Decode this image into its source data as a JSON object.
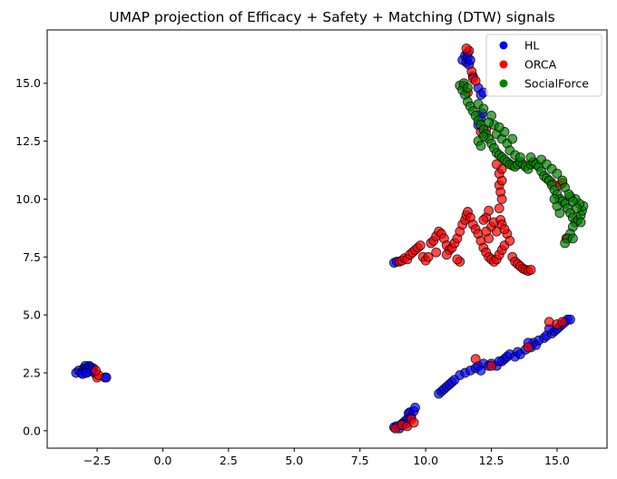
{
  "chart_data": {
    "type": "scatter",
    "title": "UMAP projection of Efficacy + Safety + Matching (DTW) signals",
    "xlabel": "",
    "ylabel": "",
    "xlim": [
      -4.4,
      16.9
    ],
    "ylim": [
      -0.75,
      17.3
    ],
    "xticks": [
      {
        "value": -2.5,
        "label": "−2.5"
      },
      {
        "value": 0.0,
        "label": "0.0"
      },
      {
        "value": 2.5,
        "label": "2.5"
      },
      {
        "value": 5.0,
        "label": "5.0"
      },
      {
        "value": 7.5,
        "label": "7.5"
      },
      {
        "value": 10.0,
        "label": "10.0"
      },
      {
        "value": 12.5,
        "label": "12.5"
      },
      {
        "value": 15.0,
        "label": "15.0"
      }
    ],
    "yticks": [
      {
        "value": 0.0,
        "label": "0.0"
      },
      {
        "value": 2.5,
        "label": "2.5"
      },
      {
        "value": 5.0,
        "label": "5.0"
      },
      {
        "value": 7.5,
        "label": "7.5"
      },
      {
        "value": 10.0,
        "label": "10.0"
      },
      {
        "value": 12.5,
        "label": "12.5"
      },
      {
        "value": 15.0,
        "label": "15.0"
      }
    ],
    "grid": false,
    "legend": {
      "placement": "top-right"
    },
    "series": [
      {
        "name": "HL",
        "color": "#0000ff",
        "points": [
          [
            -3.3,
            2.5
          ],
          [
            -3.2,
            2.6
          ],
          [
            -3.1,
            2.5
          ],
          [
            -3.0,
            2.7
          ],
          [
            -2.95,
            2.8
          ],
          [
            -2.9,
            2.7
          ],
          [
            -2.85,
            2.55
          ],
          [
            -2.8,
            2.8
          ],
          [
            -2.75,
            2.75
          ],
          [
            -2.7,
            2.6
          ],
          [
            -2.65,
            2.7
          ],
          [
            -2.6,
            2.5
          ],
          [
            -2.2,
            2.3
          ],
          [
            -2.15,
            2.3
          ],
          [
            -3.05,
            2.45
          ],
          [
            -2.9,
            2.5
          ],
          [
            8.8,
            0.15
          ],
          [
            8.9,
            0.2
          ],
          [
            9.0,
            0.1
          ],
          [
            9.1,
            0.3
          ],
          [
            9.2,
            0.4
          ],
          [
            9.3,
            0.5
          ],
          [
            9.35,
            0.75
          ],
          [
            9.4,
            0.8
          ],
          [
            9.45,
            0.6
          ],
          [
            9.55,
            0.85
          ],
          [
            9.6,
            1.0
          ],
          [
            9.25,
            0.3
          ],
          [
            10.5,
            1.6
          ],
          [
            10.6,
            1.7
          ],
          [
            10.7,
            1.8
          ],
          [
            10.8,
            1.9
          ],
          [
            10.9,
            2.0
          ],
          [
            11.0,
            2.1
          ],
          [
            11.1,
            2.2
          ],
          [
            11.3,
            2.4
          ],
          [
            11.5,
            2.5
          ],
          [
            11.7,
            2.6
          ],
          [
            11.9,
            2.7
          ],
          [
            12.0,
            2.8
          ],
          [
            12.2,
            2.9
          ],
          [
            12.4,
            2.8
          ],
          [
            12.5,
            2.9
          ],
          [
            12.7,
            2.8
          ],
          [
            12.9,
            3.0
          ],
          [
            13.0,
            3.1
          ],
          [
            13.1,
            3.2
          ],
          [
            13.2,
            3.3
          ],
          [
            13.4,
            3.2
          ],
          [
            13.5,
            3.4
          ],
          [
            13.6,
            3.3
          ],
          [
            13.8,
            3.5
          ],
          [
            14.0,
            3.6
          ],
          [
            14.1,
            3.8
          ],
          [
            14.2,
            3.7
          ],
          [
            14.3,
            3.9
          ],
          [
            14.5,
            4.0
          ],
          [
            14.6,
            4.1
          ],
          [
            14.8,
            4.2
          ],
          [
            14.9,
            4.3
          ],
          [
            15.0,
            4.4
          ],
          [
            15.1,
            4.5
          ],
          [
            15.2,
            4.6
          ],
          [
            15.3,
            4.7
          ],
          [
            15.4,
            4.8
          ],
          [
            15.5,
            4.8
          ],
          [
            14.7,
            4.4
          ],
          [
            13.9,
            3.8
          ],
          [
            12.8,
            3.0
          ],
          [
            12.1,
            2.6
          ],
          [
            8.8,
            7.25
          ],
          [
            8.9,
            7.3
          ],
          [
            11.4,
            16.0
          ],
          [
            11.5,
            16.2
          ],
          [
            11.55,
            15.9
          ],
          [
            11.6,
            16.3
          ],
          [
            11.6,
            16.1
          ],
          [
            11.65,
            15.8
          ],
          [
            11.7,
            16.0
          ],
          [
            11.8,
            15.3
          ],
          [
            12.0,
            14.8
          ],
          [
            12.1,
            14.5
          ],
          [
            12.2,
            14.6
          ],
          [
            12.0,
            13.2
          ],
          [
            12.1,
            13.5
          ],
          [
            12.15,
            13.7
          ]
        ]
      },
      {
        "name": "ORCA",
        "color": "#ff0000",
        "points": [
          [
            -2.5,
            2.3
          ],
          [
            -2.45,
            2.4
          ],
          [
            -2.55,
            2.6
          ],
          [
            8.85,
            0.1
          ],
          [
            9.1,
            0.25
          ],
          [
            9.3,
            0.2
          ],
          [
            9.45,
            0.5
          ],
          [
            9.55,
            0.35
          ],
          [
            11.9,
            3.1
          ],
          [
            12.5,
            2.8
          ],
          [
            13.9,
            3.6
          ],
          [
            14.7,
            4.7
          ],
          [
            15.0,
            4.6
          ],
          [
            15.2,
            4.7
          ],
          [
            9.0,
            7.3
          ],
          [
            9.1,
            7.35
          ],
          [
            9.2,
            7.45
          ],
          [
            9.3,
            7.4
          ],
          [
            9.4,
            7.6
          ],
          [
            9.5,
            7.7
          ],
          [
            9.6,
            7.8
          ],
          [
            9.7,
            7.9
          ],
          [
            9.8,
            8.0
          ],
          [
            9.9,
            7.5
          ],
          [
            10.0,
            7.35
          ],
          [
            10.1,
            7.5
          ],
          [
            10.2,
            8.1
          ],
          [
            10.3,
            8.2
          ],
          [
            10.4,
            8.4
          ],
          [
            10.5,
            8.6
          ],
          [
            10.6,
            8.5
          ],
          [
            10.7,
            8.3
          ],
          [
            10.8,
            8.0
          ],
          [
            10.9,
            7.8
          ],
          [
            11.0,
            7.9
          ],
          [
            11.1,
            8.1
          ],
          [
            11.2,
            8.3
          ],
          [
            11.3,
            8.6
          ],
          [
            11.4,
            8.9
          ],
          [
            11.5,
            9.1
          ],
          [
            11.55,
            9.3
          ],
          [
            11.6,
            9.45
          ],
          [
            11.7,
            9.2
          ],
          [
            11.8,
            8.9
          ],
          [
            11.9,
            8.7
          ],
          [
            12.0,
            8.5
          ],
          [
            12.1,
            8.2
          ],
          [
            12.2,
            7.9
          ],
          [
            12.3,
            7.7
          ],
          [
            12.4,
            7.5
          ],
          [
            12.5,
            7.4
          ],
          [
            12.6,
            7.3
          ],
          [
            12.7,
            7.4
          ],
          [
            12.8,
            7.6
          ],
          [
            12.9,
            7.8
          ],
          [
            13.0,
            8.0
          ],
          [
            13.1,
            8.5
          ],
          [
            13.2,
            8.2
          ],
          [
            13.3,
            7.5
          ],
          [
            13.4,
            7.3
          ],
          [
            13.5,
            7.2
          ],
          [
            13.6,
            7.1
          ],
          [
            13.7,
            7.0
          ],
          [
            13.8,
            6.95
          ],
          [
            13.9,
            6.9
          ],
          [
            14.0,
            6.95
          ],
          [
            12.5,
            8.8
          ],
          [
            12.6,
            9.0
          ],
          [
            12.7,
            8.6
          ],
          [
            12.85,
            9.1
          ],
          [
            12.9,
            8.9
          ],
          [
            13.0,
            8.7
          ],
          [
            12.4,
            8.3
          ],
          [
            12.3,
            8.6
          ],
          [
            11.3,
            7.3
          ],
          [
            11.2,
            7.4
          ],
          [
            10.8,
            7.6
          ],
          [
            10.4,
            7.7
          ],
          [
            12.3,
            9.2
          ],
          [
            12.4,
            9.5
          ],
          [
            12.2,
            9.1
          ],
          [
            12.8,
            10.6
          ],
          [
            12.85,
            10.3
          ],
          [
            12.9,
            10.0
          ],
          [
            12.8,
            9.6
          ],
          [
            12.9,
            10.8
          ],
          [
            12.8,
            11.1
          ],
          [
            12.9,
            11.3
          ],
          [
            12.7,
            11.5
          ],
          [
            11.75,
            15.5
          ],
          [
            11.8,
            15.2
          ],
          [
            11.9,
            15.1
          ],
          [
            11.65,
            16.4
          ],
          [
            11.55,
            16.5
          ],
          [
            11.45,
            14.9
          ],
          [
            11.6,
            14.6
          ],
          [
            12.3,
            13.0
          ],
          [
            12.1,
            12.9
          ],
          [
            15.1,
            10.6
          ],
          [
            15.2,
            10.7
          ],
          [
            14.8,
            10.7
          ],
          [
            15.35,
            8.3
          ]
        ]
      },
      {
        "name": "SocialForce",
        "color": "#008000",
        "points": [
          [
            11.3,
            14.9
          ],
          [
            11.4,
            14.7
          ],
          [
            11.5,
            14.5
          ],
          [
            11.6,
            14.2
          ],
          [
            11.7,
            14.0
          ],
          [
            11.8,
            13.8
          ],
          [
            11.9,
            13.6
          ],
          [
            12.0,
            13.4
          ],
          [
            12.1,
            13.2
          ],
          [
            12.2,
            13.0
          ],
          [
            12.3,
            12.8
          ],
          [
            12.4,
            12.6
          ],
          [
            12.5,
            12.4
          ],
          [
            12.6,
            12.2
          ],
          [
            12.7,
            12.0
          ],
          [
            12.8,
            11.9
          ],
          [
            12.9,
            11.8
          ],
          [
            13.0,
            11.7
          ],
          [
            13.1,
            11.6
          ],
          [
            13.2,
            11.5
          ],
          [
            13.3,
            11.45
          ],
          [
            13.4,
            11.4
          ],
          [
            13.5,
            11.5
          ],
          [
            13.6,
            11.6
          ],
          [
            13.7,
            11.5
          ],
          [
            13.8,
            11.4
          ],
          [
            13.9,
            11.3
          ],
          [
            14.0,
            11.5
          ],
          [
            14.1,
            11.6
          ],
          [
            14.2,
            11.5
          ],
          [
            14.3,
            11.4
          ],
          [
            14.4,
            11.2
          ],
          [
            14.5,
            11.0
          ],
          [
            14.6,
            10.9
          ],
          [
            14.7,
            10.8
          ],
          [
            14.8,
            10.6
          ],
          [
            14.9,
            10.4
          ],
          [
            15.0,
            10.2
          ],
          [
            15.1,
            10.0
          ],
          [
            15.2,
            9.9
          ],
          [
            15.3,
            9.8
          ],
          [
            15.4,
            9.6
          ],
          [
            15.5,
            9.4
          ],
          [
            15.6,
            9.2
          ],
          [
            15.7,
            9.0
          ],
          [
            15.8,
            9.1
          ],
          [
            15.9,
            9.3
          ],
          [
            15.95,
            9.5
          ],
          [
            16.0,
            9.7
          ],
          [
            15.85,
            9.8
          ],
          [
            15.7,
            10.0
          ],
          [
            15.5,
            10.1
          ],
          [
            15.6,
            8.8
          ],
          [
            15.5,
            8.5
          ],
          [
            15.4,
            8.3
          ],
          [
            15.3,
            8.1
          ],
          [
            15.6,
            8.3
          ],
          [
            11.45,
            15.0
          ],
          [
            11.6,
            14.8
          ],
          [
            12.0,
            14.1
          ],
          [
            12.2,
            13.9
          ],
          [
            12.5,
            13.6
          ],
          [
            12.6,
            13.2
          ],
          [
            12.4,
            13.3
          ],
          [
            12.7,
            12.8
          ],
          [
            12.9,
            12.6
          ],
          [
            13.1,
            12.4
          ],
          [
            13.3,
            12.6
          ],
          [
            13.0,
            12.9
          ],
          [
            12.8,
            13.1
          ],
          [
            12.2,
            12.7
          ],
          [
            12.0,
            12.5
          ],
          [
            12.1,
            12.3
          ],
          [
            13.2,
            12.1
          ],
          [
            13.4,
            11.9
          ],
          [
            13.6,
            11.8
          ],
          [
            14.0,
            11.8
          ],
          [
            14.4,
            11.7
          ],
          [
            14.6,
            11.5
          ],
          [
            14.8,
            11.3
          ],
          [
            15.0,
            11.1
          ],
          [
            15.2,
            10.8
          ],
          [
            15.3,
            10.5
          ],
          [
            15.45,
            10.2
          ],
          [
            15.6,
            9.9
          ],
          [
            15.75,
            9.6
          ],
          [
            15.9,
            9.0
          ],
          [
            15.1,
            9.4
          ],
          [
            15.0,
            9.7
          ],
          [
            14.9,
            10.0
          ]
        ]
      }
    ]
  }
}
